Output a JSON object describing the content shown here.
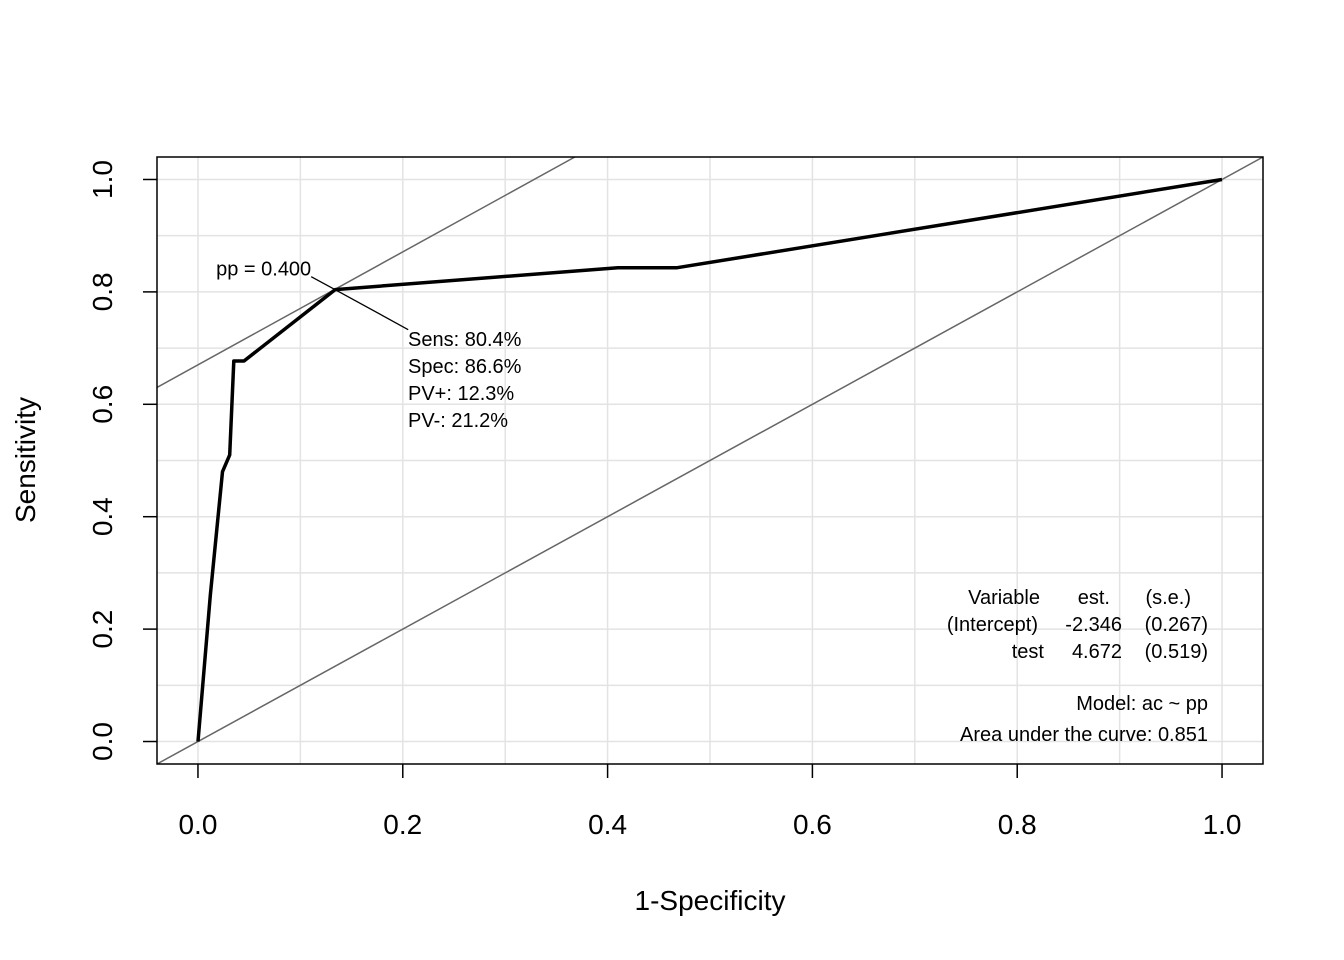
{
  "chart_data": {
    "type": "line",
    "title": "",
    "xlabel": "1-Specificity",
    "ylabel": "Sensitivity",
    "xlim": [
      -0.04,
      1.04
    ],
    "ylim": [
      -0.04,
      1.04
    ],
    "grid": true,
    "x_ticks": [
      0.0,
      0.2,
      0.4,
      0.6,
      0.8,
      1.0
    ],
    "y_ticks": [
      0.0,
      0.2,
      0.4,
      0.6,
      0.8,
      1.0
    ],
    "x_tick_labels": [
      "0.0",
      "0.2",
      "0.4",
      "0.6",
      "0.8",
      "1.0"
    ],
    "y_tick_labels": [
      "0.0",
      "0.2",
      "0.4",
      "0.6",
      "0.8",
      "1.0"
    ],
    "series": [
      {
        "x": [
          0.0,
          0.012,
          0.024,
          0.031,
          0.035,
          0.045,
          0.134,
          0.41,
          0.468,
          1.0
        ],
        "y": [
          0.0,
          0.26,
          0.48,
          0.51,
          0.677,
          0.677,
          0.804,
          0.843,
          0.843,
          1.0
        ]
      }
    ],
    "reference_lines": [
      {
        "kind": "diagonal",
        "x": [
          -0.04,
          1.04
        ],
        "y": [
          -0.04,
          1.04
        ]
      },
      {
        "kind": "tangent",
        "x": [
          -0.04,
          0.368
        ],
        "y": [
          0.63,
          1.04
        ]
      }
    ],
    "cutoff": {
      "x": 0.134,
      "y": 0.804,
      "label": "pp = 0.400",
      "stats": [
        "Sens: 80.4%",
        "Spec: 86.6%",
        "PV+: 12.3%",
        "PV-: 21.2%"
      ]
    },
    "model_table": {
      "header": [
        "Variable",
        "est.",
        "(s.e.)"
      ],
      "rows": [
        [
          "(Intercept)",
          "-2.346",
          "(0.267)"
        ],
        [
          "test",
          "4.672",
          "(0.519)"
        ]
      ]
    },
    "model_label": "Model:  ac ~ pp",
    "auc_label": "Area under the curve: 0.851"
  }
}
